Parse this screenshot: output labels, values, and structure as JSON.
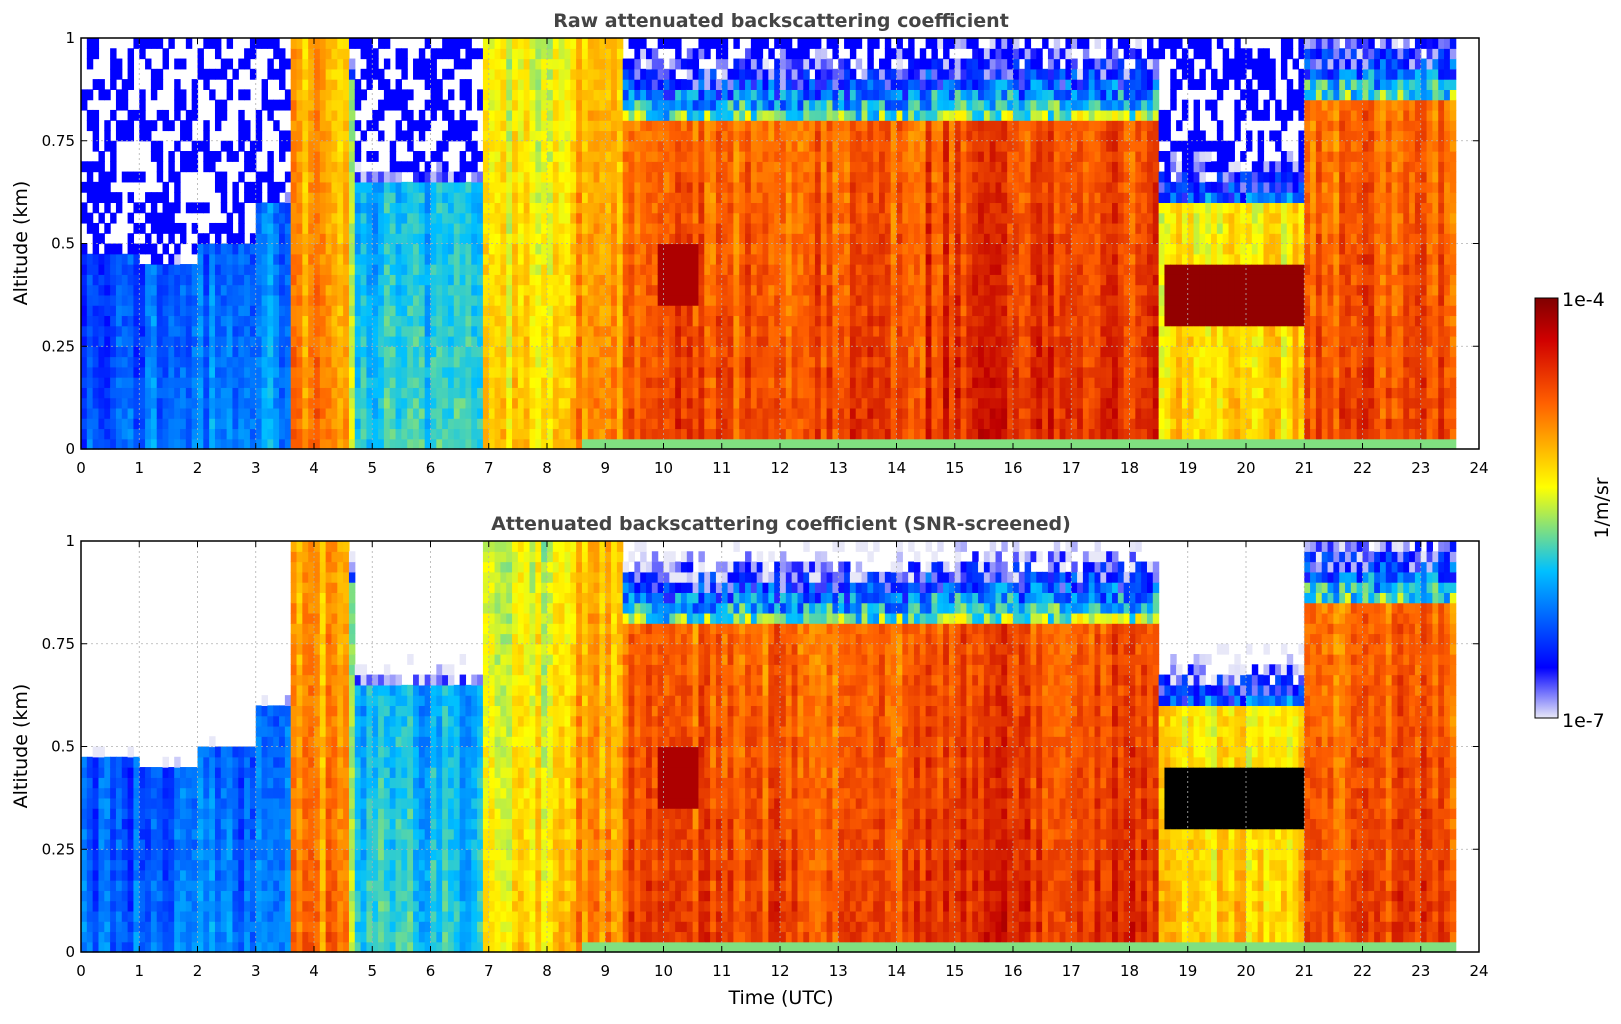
{
  "chart_data": [
    {
      "type": "heatmap",
      "title": "Raw attenuated backscattering coefficient",
      "xlabel": "",
      "ylabel": "Altitude (km)",
      "xlim": [
        0,
        24
      ],
      "ylim": [
        0,
        1
      ],
      "xticks": [
        "0",
        "1",
        "2",
        "3",
        "4",
        "5",
        "6",
        "7",
        "8",
        "9",
        "10",
        "11",
        "12",
        "13",
        "14",
        "15",
        "16",
        "17",
        "18",
        "19",
        "20",
        "21",
        "22",
        "23",
        "24"
      ],
      "yticks": [
        "0",
        "0.25",
        "0.5",
        "0.75",
        "1"
      ],
      "grid": true,
      "data_end_time": 23.6,
      "screened": false
    },
    {
      "type": "heatmap",
      "title": "Attenuated backscattering coefficient (SNR-screened)",
      "xlabel": "Time (UTC)",
      "ylabel": "Altitude (km)",
      "xlim": [
        0,
        24
      ],
      "ylim": [
        0,
        1
      ],
      "xticks": [
        "0",
        "1",
        "2",
        "3",
        "4",
        "5",
        "6",
        "7",
        "8",
        "9",
        "10",
        "11",
        "12",
        "13",
        "14",
        "15",
        "16",
        "17",
        "18",
        "19",
        "20",
        "21",
        "22",
        "23",
        "24"
      ],
      "yticks": [
        "0",
        "0.25",
        "0.5",
        "0.75",
        "1"
      ],
      "grid": true,
      "data_end_time": 23.6,
      "screened": true
    }
  ],
  "colorbar": {
    "label": "1/m/sr",
    "max_label": "1e-4",
    "min_label": "1e-7",
    "colormap": "jet",
    "colors": [
      "#e8e8f8",
      "#0000ff",
      "#00c0ff",
      "#ffff00",
      "#ff6000",
      "#c00000",
      "#800000"
    ]
  },
  "profile_regimes": [
    {
      "start": 0.0,
      "end": 1.0,
      "level": 0.24,
      "top": 0.48
    },
    {
      "start": 1.0,
      "end": 2.0,
      "level": 0.26,
      "top": 0.45
    },
    {
      "start": 2.0,
      "end": 3.0,
      "level": 0.27,
      "top": 0.5
    },
    {
      "start": 3.0,
      "end": 3.6,
      "level": 0.3,
      "top": 0.6
    },
    {
      "start": 3.6,
      "end": 4.6,
      "level": 0.72,
      "top": 1.0
    },
    {
      "start": 4.6,
      "end": 4.75,
      "level": 0.52,
      "top": 0.9
    },
    {
      "start": 4.75,
      "end": 6.9,
      "level": 0.38,
      "top": 0.65
    },
    {
      "start": 6.9,
      "end": 8.4,
      "level": 0.6,
      "top": 1.0
    },
    {
      "start": 8.4,
      "end": 9.3,
      "level": 0.7,
      "top": 1.0
    },
    {
      "start": 9.3,
      "end": 14.5,
      "level": 0.8,
      "top": 0.8
    },
    {
      "start": 14.5,
      "end": 18.5,
      "level": 0.84,
      "top": 0.8
    },
    {
      "start": 18.5,
      "end": 21.0,
      "level": 0.62,
      "top": 0.6
    },
    {
      "start": 21.0,
      "end": 23.6,
      "level": 0.8,
      "top": 0.85
    }
  ]
}
